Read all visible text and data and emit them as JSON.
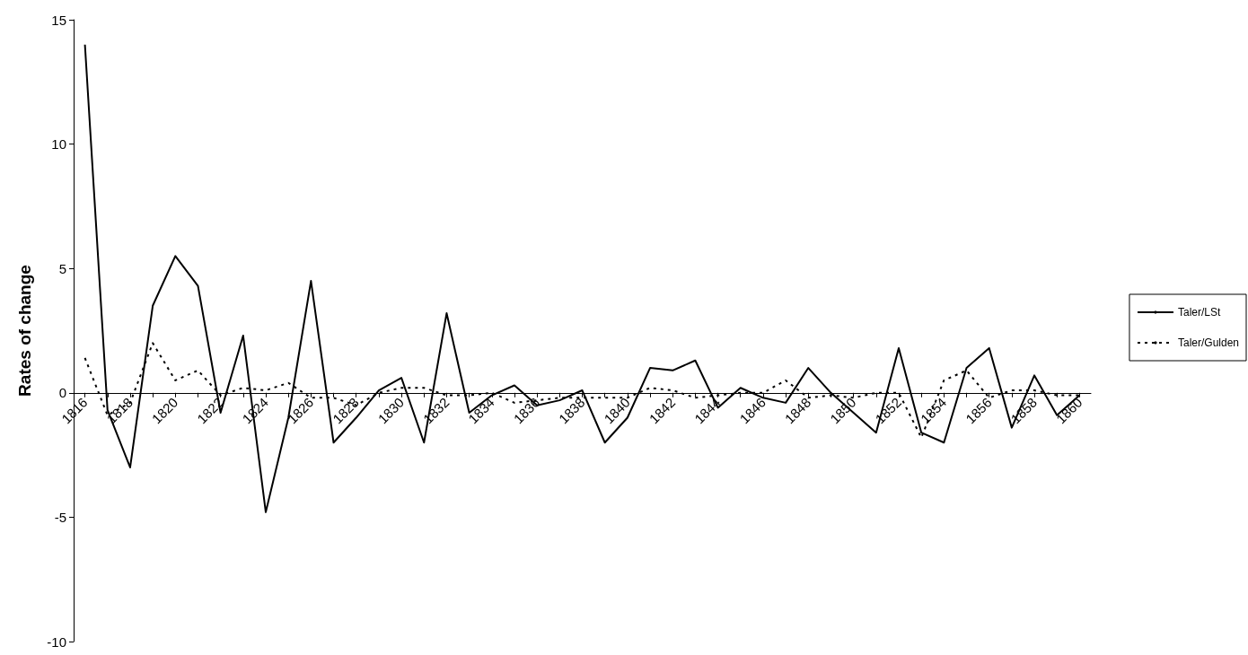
{
  "chart_data": {
    "type": "line",
    "ylabel": "Rates of change",
    "categories": [
      "1816",
      null,
      "1818",
      null,
      "1820",
      null,
      "1822",
      null,
      "1824",
      null,
      "1826",
      null,
      "1828",
      null,
      "1830",
      null,
      "1832",
      null,
      "1834",
      null,
      "1836",
      null,
      "1838",
      null,
      "1840",
      null,
      "1842",
      null,
      "1844",
      null,
      "1846",
      null,
      "1848",
      null,
      "1850",
      null,
      "1852",
      null,
      "1854",
      null,
      "1856",
      null,
      "1858",
      null,
      "1860"
    ],
    "series": [
      {
        "name": "Taler/LSt",
        "color": "#000000",
        "line_style": "solid",
        "values": [
          14,
          -0.7,
          -3,
          3.5,
          5.5,
          4.3,
          -0.8,
          2.3,
          -4.8,
          -1,
          4.5,
          -2,
          -1,
          0.1,
          0.6,
          -2,
          3.2,
          -0.8,
          -0.1,
          0.3,
          -0.5,
          -0.3,
          0.1,
          -2,
          -1,
          1,
          0.9,
          1.3,
          -0.6,
          0.2,
          -0.2,
          -0.4,
          1,
          0,
          -0.8,
          -1.6,
          1.8,
          -1.6,
          -2,
          1,
          1.8,
          -1.4,
          0.7,
          -0.9,
          -0.1
        ]
      },
      {
        "name": "Taler/Gulden",
        "color": "#000000",
        "line_style": "dotted",
        "values": [
          1.4,
          -0.9,
          -0.4,
          2,
          0.5,
          0.9,
          -0.1,
          0.2,
          0.1,
          0.4,
          -0.2,
          -0.2,
          -0.5,
          0,
          0.2,
          0.2,
          -0.1,
          -0.1,
          0,
          -0.4,
          -0.3,
          -0.2,
          -0.2,
          -0.2,
          -0.2,
          0.2,
          0.1,
          -0.2,
          -0.1,
          0,
          0,
          0.5,
          -0.2,
          -0.1,
          -0.2,
          0,
          0,
          -1.8,
          0.5,
          0.9,
          -0.2,
          0.1,
          0.1,
          -0.1,
          -0.1
        ]
      }
    ],
    "ylim": [
      -10,
      15
    ],
    "yticks": [
      -10,
      -5,
      0,
      5,
      10,
      15
    ],
    "grid": false,
    "legend": "right",
    "marker": "none"
  }
}
